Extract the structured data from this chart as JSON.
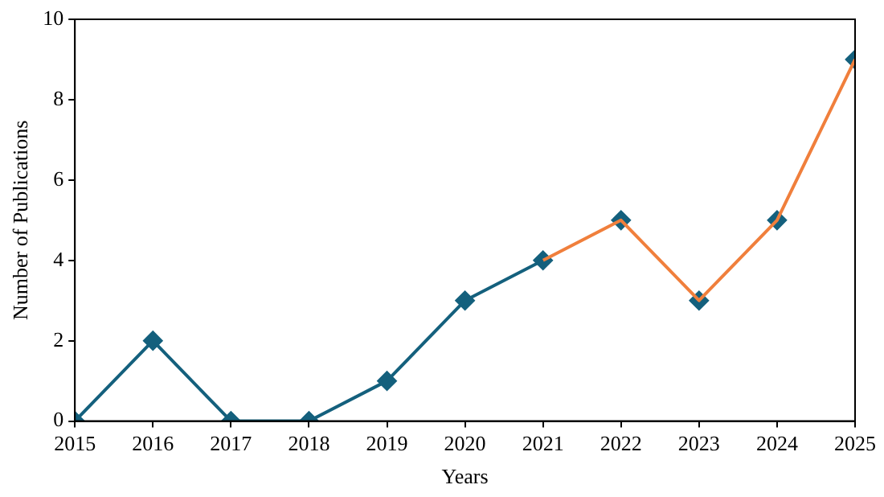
{
  "chart_data": {
    "type": "line",
    "xlabel": "Years",
    "ylabel": "Number of Publications",
    "xlim": [
      2015,
      2025
    ],
    "xticks": [
      2015,
      2016,
      2017,
      2018,
      2019,
      2020,
      2021,
      2022,
      2023,
      2024,
      2025
    ],
    "ylim": [
      0,
      10
    ],
    "yticks": [
      0,
      2,
      4,
      6,
      8,
      10
    ],
    "grid": false,
    "legend": false,
    "series": [
      {
        "type": "line",
        "color": "#14607d",
        "marker": "none",
        "x": [
          2015,
          2016,
          2017,
          2018,
          2019,
          2020,
          2021
        ],
        "values": [
          0,
          2,
          0,
          0,
          1,
          3,
          4
        ]
      },
      {
        "type": "line",
        "color": "#f07f3c",
        "marker": "none",
        "x": [
          2021,
          2022,
          2023,
          2024,
          2025
        ],
        "values": [
          4,
          5,
          3,
          5,
          9
        ]
      },
      {
        "type": "scatter",
        "color": "#14607d",
        "marker": "diamond",
        "x": [
          2015,
          2016,
          2017,
          2018,
          2019,
          2020,
          2021,
          2022,
          2023,
          2024,
          2025
        ],
        "values": [
          0,
          2,
          0,
          0,
          1,
          3,
          4,
          5,
          3,
          5,
          9
        ]
      }
    ]
  }
}
